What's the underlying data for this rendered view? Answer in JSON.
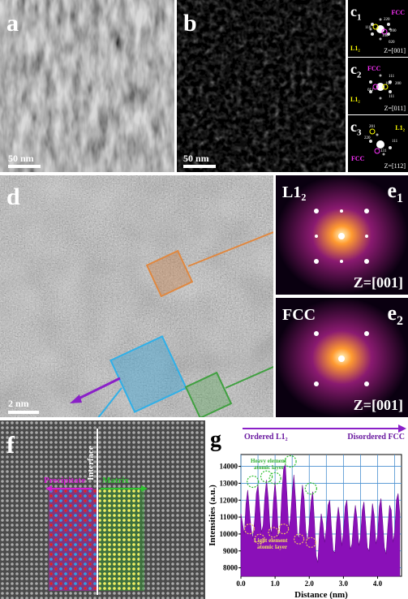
{
  "panels": {
    "a": {
      "label": "a",
      "scale": "50 nm"
    },
    "b": {
      "label": "b",
      "scale": "50 nm"
    },
    "c1": {
      "label": "c",
      "sub": "1",
      "zone": "Z=[001]",
      "phase1": "FCC",
      "phase2": "L1₂",
      "spots": [
        "220",
        "020",
        "110",
        "100",
        "200"
      ]
    },
    "c2": {
      "label": "c",
      "sub": "2",
      "zone": "Z=[011]",
      "phase1": "FCC",
      "phase2": "L1₂",
      "spots": [
        "111",
        "200",
        "100",
        "011",
        "111"
      ]
    },
    "c3": {
      "label": "c",
      "sub": "3",
      "zone": "Z=[112]",
      "phase1": "L1₂",
      "phase2": "FCC",
      "spots": [
        "201",
        "220",
        "131",
        "111"
      ]
    },
    "d": {
      "label": "d",
      "scale": "2 nm"
    },
    "e1": {
      "label": "e",
      "sub": "1",
      "phase": "L1₂",
      "zone": "Z=[001]"
    },
    "e2": {
      "label": "e",
      "sub": "2",
      "phase": "FCC",
      "zone": "Z=[001]"
    },
    "f": {
      "label": "f",
      "interface": "Interface",
      "left_phase": "Precipitate",
      "right_phase": "Matrix"
    }
  },
  "chart_data": {
    "type": "line",
    "label": "g",
    "arrow_left": "Ordered L1₂",
    "arrow_right": "Disordered FCC",
    "xlabel": "Distance (nm)",
    "ylabel": "Intensities (a.u.)",
    "xlim": [
      0,
      4.7
    ],
    "ylim": [
      7500,
      14700
    ],
    "xticks": [
      0.0,
      1.0,
      2.0,
      3.0,
      4.0
    ],
    "yticks": [
      8000,
      9000,
      10000,
      11000,
      12000,
      13000,
      14000
    ],
    "annotation_heavy": "Heavy element atomic layer",
    "annotation_light": "Light element atomic layer",
    "series": [
      {
        "x": [
          0.0,
          0.05,
          0.1,
          0.15,
          0.2,
          0.25,
          0.3,
          0.35,
          0.4,
          0.45,
          0.5,
          0.55,
          0.6,
          0.65,
          0.7,
          0.75,
          0.8,
          0.85,
          0.9,
          0.95,
          1.0,
          1.05,
          1.1,
          1.15,
          1.2,
          1.25,
          1.3,
          1.35,
          1.4,
          1.45,
          1.5,
          1.55,
          1.6,
          1.65,
          1.7,
          1.75,
          1.8,
          1.85,
          1.9,
          1.95,
          2.0,
          2.05,
          2.1,
          2.15,
          2.2,
          2.25,
          2.3,
          2.35,
          2.4,
          2.45,
          2.5,
          2.55,
          2.6,
          2.65,
          2.7,
          2.75,
          2.8,
          2.85,
          2.9,
          2.95,
          3.0,
          3.05,
          3.1,
          3.15,
          3.2,
          3.25,
          3.3,
          3.35,
          3.4,
          3.45,
          3.5,
          3.55,
          3.6,
          3.65,
          3.7,
          3.75,
          3.8,
          3.85,
          3.9,
          3.95,
          4.0,
          4.05,
          4.1,
          4.15,
          4.2,
          4.25,
          4.3,
          4.35,
          4.4,
          4.45,
          4.5,
          4.55,
          4.6,
          4.65
        ],
        "y": [
          11200,
          10600,
          10000,
          11800,
          12600,
          11400,
          10300,
          9700,
          10800,
          12400,
          12900,
          11500,
          10100,
          10500,
          12200,
          13200,
          12100,
          10400,
          10000,
          11900,
          13100,
          11800,
          9800,
          10200,
          12500,
          13900,
          14100,
          12200,
          10300,
          10900,
          12400,
          13500,
          12000,
          10000,
          9700,
          11600,
          12900,
          12100,
          10200,
          9500,
          10600,
          11900,
          12500,
          10800,
          8700,
          8300,
          10100,
          11200,
          10600,
          9500,
          10300,
          11700,
          12000,
          10400,
          9000,
          8900,
          10700,
          11600,
          10800,
          9300,
          10100,
          11600,
          12000,
          10500,
          9100,
          9400,
          10800,
          11700,
          10900,
          9300,
          9800,
          11400,
          11900,
          10600,
          9200,
          9000,
          10600,
          11800,
          11100,
          9400,
          9900,
          11600,
          12100,
          10700,
          9200,
          8800,
          10400,
          11700,
          11400,
          9500,
          10100,
          12000,
          12400,
          11200
        ]
      }
    ]
  }
}
